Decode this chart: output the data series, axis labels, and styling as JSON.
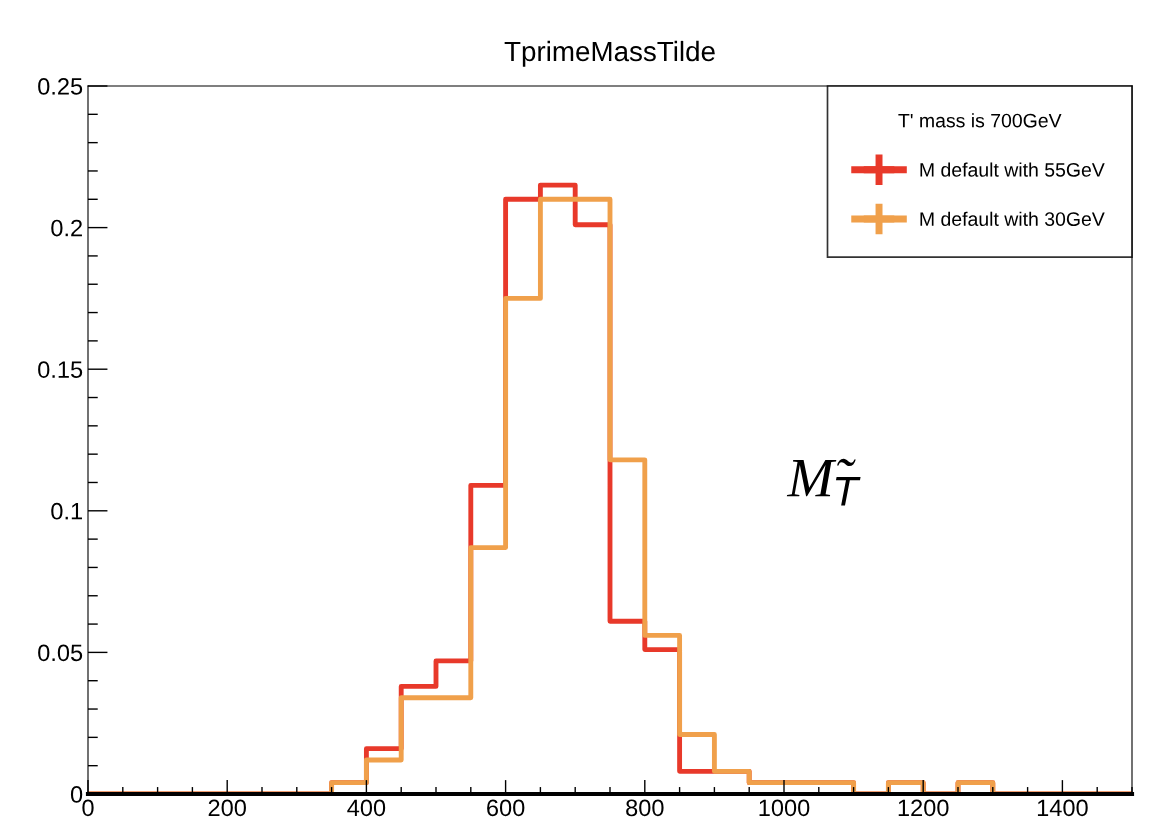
{
  "chart_data": {
    "type": "histogram",
    "title": "TprimeMassTilde",
    "legend_title": "T' mass is 700GeV",
    "legend": "top right",
    "bins": [
      0,
      50,
      100,
      150,
      200,
      250,
      300,
      350,
      400,
      450,
      500,
      550,
      600,
      650,
      700,
      750,
      800,
      850,
      900,
      950,
      1000,
      1050,
      1100,
      1150,
      1200,
      1250,
      1300,
      1350,
      1400,
      1450,
      1500
    ],
    "series": [
      {
        "name": "M default with 55GeV",
        "color": "#e8392a",
        "values": [
          0,
          0,
          0,
          0,
          0,
          0,
          0,
          0.004,
          0.016,
          0.038,
          0.047,
          0.109,
          0.21,
          0.215,
          0.201,
          0.061,
          0.051,
          0.008,
          0.008,
          0.004,
          0.004,
          0.004,
          0,
          0.004,
          0,
          0.004,
          0,
          0,
          0,
          0
        ]
      },
      {
        "name": "M default with 30GeV",
        "color": "#f0a04b",
        "values": [
          0,
          0,
          0,
          0,
          0,
          0,
          0,
          0.004,
          0.012,
          0.034,
          0.034,
          0.087,
          0.175,
          0.21,
          0.21,
          0.118,
          0.056,
          0.021,
          0.008,
          0.004,
          0.004,
          0.004,
          0,
          0.004,
          0,
          0.004,
          0,
          0,
          0,
          0
        ]
      }
    ],
    "xlim": [
      0,
      1500
    ],
    "xticks": [
      0,
      200,
      400,
      600,
      800,
      1000,
      1200,
      1400
    ],
    "ylim": [
      0,
      0.25
    ],
    "yticks": [
      0,
      0.05,
      0.1,
      0.15,
      0.2,
      0.25
    ],
    "annotations": [
      "M̃$_{T}$"
    ],
    "grid": false
  }
}
